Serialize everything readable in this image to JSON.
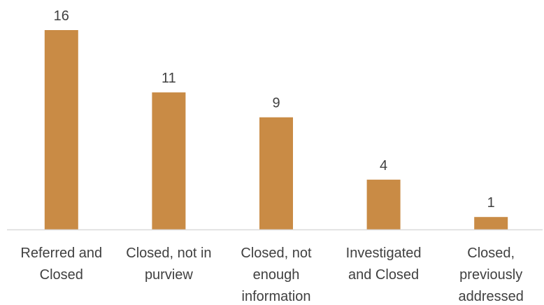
{
  "chart_data": {
    "type": "bar",
    "title": "",
    "xlabel": "",
    "ylabel": "",
    "categories": [
      [
        "Referred and",
        "Closed"
      ],
      [
        "Closed, not in",
        "purview"
      ],
      [
        "Closed, not",
        "enough",
        "information"
      ],
      [
        "Investigated",
        "and Closed"
      ],
      [
        "Closed,",
        "previously",
        "addressed"
      ]
    ],
    "values": [
      16,
      11,
      9,
      4,
      1
    ],
    "ylim": [
      0,
      16
    ],
    "grid": false,
    "legend": "none",
    "bar_color": "#C98B45",
    "axis_color": "#D9D9D9",
    "text_color": "#404040"
  }
}
